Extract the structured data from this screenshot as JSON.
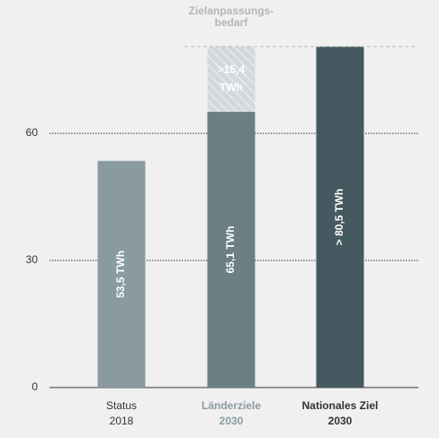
{
  "chart_data": {
    "type": "bar",
    "annotation": [
      "Zielanpassungs-",
      "bedarf"
    ],
    "categories": [
      [
        "Status",
        "2018"
      ],
      [
        "Länderziele",
        "2030"
      ],
      [
        "Nationales Ziel",
        "2030"
      ]
    ],
    "category_colors": [
      "#333333",
      "#8a9ba0",
      "#333333"
    ],
    "category_bold": [
      false,
      true,
      true
    ],
    "series": [
      {
        "values": [
          53.5,
          65.1,
          80.5
        ],
        "colors": [
          "#8a9ba0",
          "#6b7f84",
          "#455a60"
        ],
        "value_labels": [
          "53,5 TWh",
          "65,1 TWh",
          "> 80,5 TWh"
        ]
      },
      {
        "values": [
          null,
          15.4,
          null
        ],
        "color": "#d3d9db",
        "hatch": true,
        "value_labels": [
          null,
          [
            ">15,4",
            "TWh"
          ],
          null
        ]
      }
    ],
    "ylim": [
      0,
      91.5
    ],
    "yticks": [
      0,
      30,
      60
    ],
    "grid": true
  }
}
